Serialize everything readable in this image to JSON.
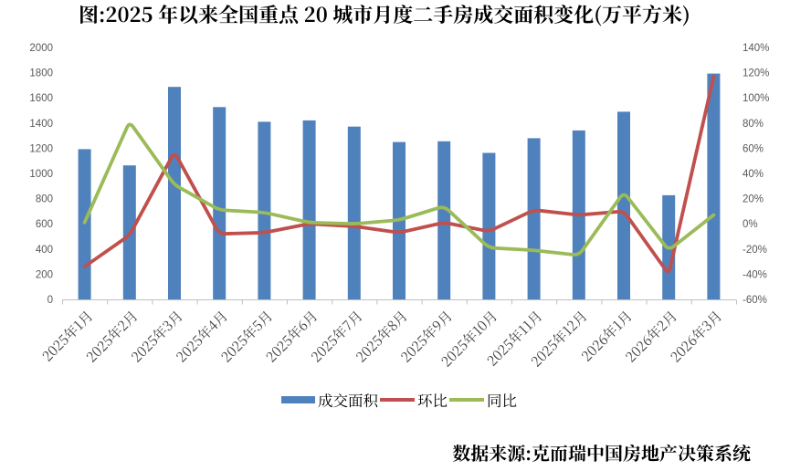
{
  "title": {
    "text": "图:2025 年以来全国重点 20 城市月度二手房成交面积变化(万平方米)"
  },
  "source_note": {
    "text": "数据来源:克而瑞中国房地产决策系统"
  },
  "colors": {
    "bar": "#4F81BD",
    "momo_line": "#C0504D",
    "yoy_line": "#9BBB59",
    "axis_line": "#BFBFBF",
    "y_tick_label": "#595959",
    "x_tick_label": "#3F3F3F",
    "title_text": "#000000"
  },
  "chart_data": {
    "type": "combo-bar-line",
    "categories": [
      "2025年1月",
      "2025年2月",
      "2025年3月",
      "2025年4月",
      "2025年5月",
      "2025年6月",
      "2025年7月",
      "2025年8月",
      "2025年9月",
      "2025年10月",
      "2025年11月",
      "2025年12月",
      "2026年1月",
      "2026年2月",
      "2026年3月"
    ],
    "series": [
      {
        "name": "成交面积",
        "type": "bar",
        "axis": "left",
        "color": "#4F81BD",
        "values": [
          1193,
          1064,
          1687,
          1527,
          1410,
          1421,
          1372,
          1249,
          1255,
          1163,
          1280,
          1341,
          1490,
          827,
          1793
        ]
      },
      {
        "name": "环比",
        "type": "line",
        "axis": "right",
        "color": "#C0504D",
        "unit": "%",
        "values": [
          -34,
          -9,
          57,
          -8,
          -7,
          0,
          -2,
          -7,
          1,
          -6,
          11,
          7,
          10,
          -40,
          117
        ]
      },
      {
        "name": "同比",
        "type": "line",
        "axis": "right",
        "color": "#9BBB59",
        "unit": "%",
        "values": [
          1,
          81,
          31,
          11,
          9,
          1,
          0,
          3,
          14,
          -19,
          -21,
          -25,
          25,
          -21,
          7
        ]
      }
    ],
    "left_axis": {
      "min": 0,
      "max": 2000,
      "step": 200,
      "tick_labels": [
        "0",
        "200",
        "400",
        "600",
        "800",
        "1000",
        "1200",
        "1400",
        "1600",
        "1800",
        "2000"
      ]
    },
    "right_axis": {
      "min": -60,
      "max": 140,
      "step": 20,
      "tick_labels": [
        "-60%",
        "-40%",
        "-20%",
        "0%",
        "20%",
        "40%",
        "60%",
        "80%",
        "100%",
        "120%",
        "140%"
      ]
    },
    "grid": false,
    "smoothed_lines": false,
    "legend_position": "bottom"
  }
}
